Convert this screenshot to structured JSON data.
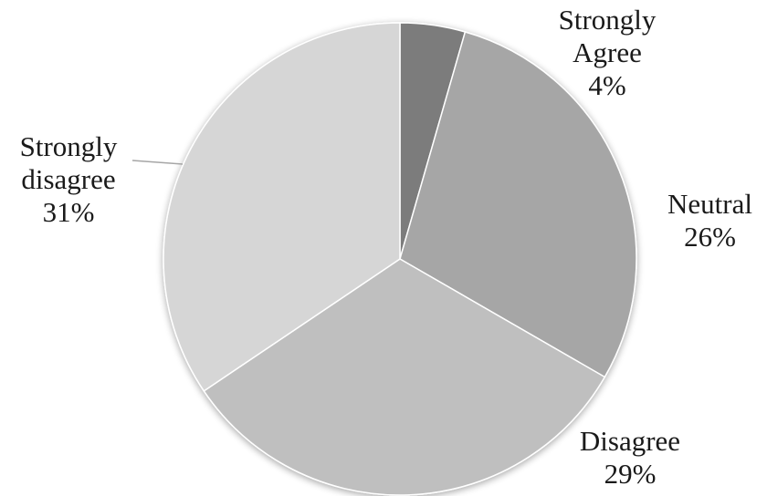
{
  "chart_data": {
    "type": "pie",
    "title": "",
    "start_angle_deg": 0,
    "direction": "clockwise",
    "slices": [
      {
        "label_lines": [
          "Strongly",
          "Agree"
        ],
        "value": 4,
        "pct_label": "4%",
        "color": "#7b7b7b"
      },
      {
        "label_lines": [
          "Neutral"
        ],
        "value": 26,
        "pct_label": "26%",
        "color": "#a6a6a6"
      },
      {
        "label_lines": [
          "Disagree"
        ],
        "value": 29,
        "pct_label": "29%",
        "color": "#bfbfbf"
      },
      {
        "label_lines": [
          "Strongly",
          "disagree"
        ],
        "value": 31,
        "pct_label": "31%",
        "color": "#d6d6d6"
      }
    ]
  }
}
